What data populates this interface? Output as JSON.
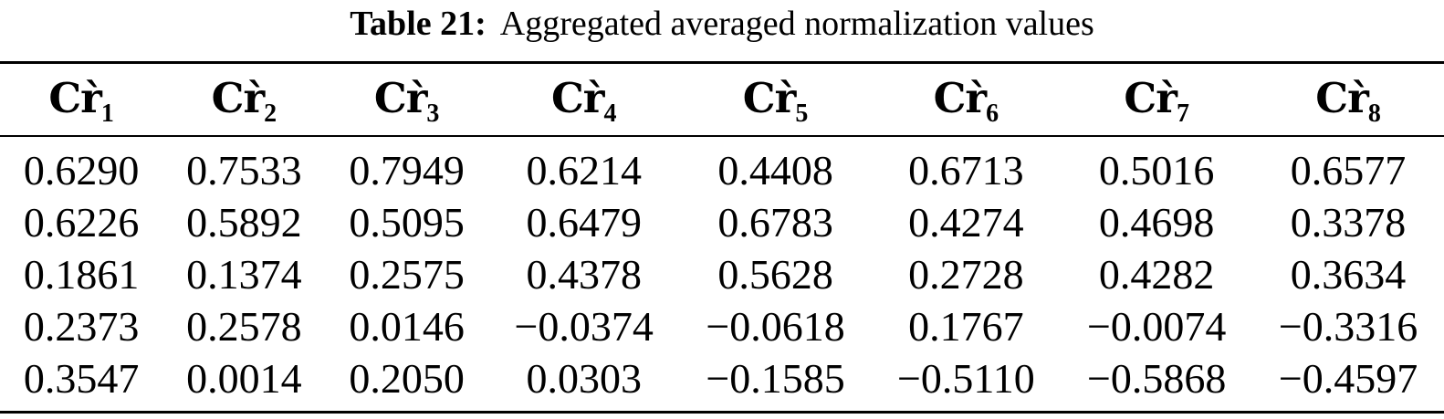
{
  "caption": {
    "label": "Table 21:",
    "text": "Aggregated averaged normalization values"
  },
  "table": {
    "columns": [
      {
        "base": "Cr̀",
        "sub": "1"
      },
      {
        "base": "Cr̀",
        "sub": "2"
      },
      {
        "base": "Cr̀",
        "sub": "3"
      },
      {
        "base": "Cr̀",
        "sub": "4"
      },
      {
        "base": "Cr̀",
        "sub": "5"
      },
      {
        "base": "Cr̀",
        "sub": "6"
      },
      {
        "base": "Cr̀",
        "sub": "7"
      },
      {
        "base": "Cr̀",
        "sub": "8"
      }
    ],
    "rows": [
      [
        "0.6290",
        "0.7533",
        "0.7949",
        "0.6214",
        "0.4408",
        "0.6713",
        "0.5016",
        "0.6577"
      ],
      [
        "0.6226",
        "0.5892",
        "0.5095",
        "0.6479",
        "0.6783",
        "0.4274",
        "0.4698",
        "0.3378"
      ],
      [
        "0.1861",
        "0.1374",
        "0.2575",
        "0.4378",
        "0.5628",
        "0.2728",
        "0.4282",
        "0.3634"
      ],
      [
        "0.2373",
        "0.2578",
        "0.0146",
        "−0.0374",
        "−0.0618",
        "0.1767",
        "−0.0074",
        "−0.3316"
      ],
      [
        "0.3547",
        "0.0014",
        "0.2050",
        "0.0303",
        "−0.1585",
        "−0.5110",
        "−0.5868",
        "−0.4597"
      ]
    ]
  },
  "colors": {
    "text": "#000000",
    "background": "#ffffff",
    "rule": "#000000"
  }
}
